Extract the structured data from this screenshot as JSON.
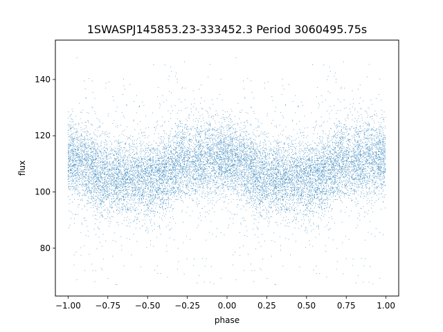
{
  "chart_data": {
    "type": "scatter",
    "title": "1SWASPJ145853.23-333452.3 Period 3060495.75s",
    "xlabel": "phase",
    "ylabel": "flux",
    "xlim": [
      -1.08,
      1.08
    ],
    "ylim": [
      63,
      154
    ],
    "x_ticks": [
      -1.0,
      -0.75,
      -0.5,
      -0.25,
      0.0,
      0.25,
      0.5,
      0.75,
      1.0
    ],
    "x_tick_labels": [
      "−1.00",
      "−0.75",
      "−0.50",
      "−0.25",
      "0.00",
      "0.25",
      "0.50",
      "0.75",
      "1.00"
    ],
    "y_ticks": [
      80,
      100,
      120,
      140
    ],
    "y_tick_labels": [
      "80",
      "100",
      "120",
      "140"
    ],
    "grid": false,
    "marker_color": "#1f77b4",
    "series": [
      {
        "x_range": [
          -1.0,
          1.0
        ],
        "folded_period": 1.0,
        "approx_points": 14000,
        "baseline_flux": 108,
        "typical_scatter": [
          95,
          122
        ],
        "outlier_range": [
          67,
          148
        ],
        "profile": [
          {
            "phase": 0.0,
            "center": 112
          },
          {
            "phase": 0.1,
            "center": 110
          },
          {
            "phase": 0.2,
            "center": 106
          },
          {
            "phase": 0.3,
            "center": 105
          },
          {
            "phase": 0.4,
            "center": 106
          },
          {
            "phase": 0.5,
            "center": 104
          },
          {
            "phase": 0.6,
            "center": 106
          },
          {
            "phase": 0.7,
            "center": 110
          },
          {
            "phase": 0.8,
            "center": 111
          },
          {
            "phase": 0.9,
            "center": 112
          },
          {
            "phase": 1.0,
            "center": 112
          }
        ]
      }
    ]
  }
}
